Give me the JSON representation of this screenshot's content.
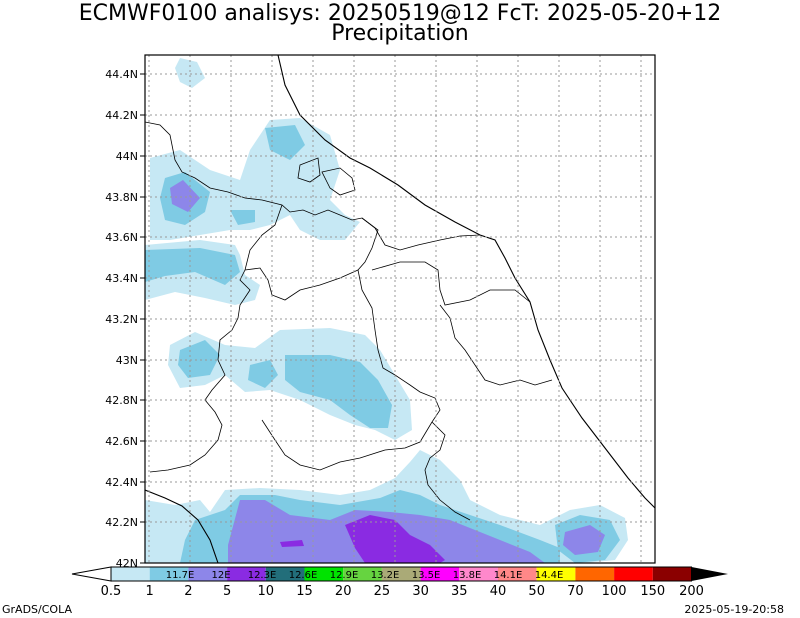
{
  "title_line1": "ECMWF0100 analisys: 20250519@12 FcT: 2025-05-20+12",
  "title_line2": "Precipitation",
  "lat_labels": [
    "44.4N",
    "44.2N",
    "44N",
    "43.8N",
    "43.6N",
    "43.4N",
    "43.2N",
    "43N",
    "42.8N",
    "42.6N",
    "42.4N",
    "42.2N",
    "42N"
  ],
  "lon_labels": [
    "11.7E",
    "12E",
    "12.3E",
    "12.6E",
    "12.9E",
    "13.2E",
    "13.5E",
    "13.8E",
    "14.1E",
    "14.4E"
  ],
  "colorbar": {
    "colors": [
      "#c6e8f4",
      "#7fcbe4",
      "#8d86e9",
      "#8a2be2",
      "#226e7a",
      "#00e300",
      "#66d440",
      "#aaaa77",
      "#ff00ff",
      "#ff88cc",
      "#ff8888",
      "#ffff00",
      "#ff6600",
      "#ff0000",
      "#8b0000"
    ],
    "labels": [
      "0.5",
      "1",
      "2",
      "5",
      "10",
      "15",
      "20",
      "25",
      "30",
      "35",
      "40",
      "50",
      "70",
      "100",
      "150",
      "200"
    ]
  },
  "footer_left": "GrADS/COLA",
  "footer_right": "2025-05-19-20:58"
}
